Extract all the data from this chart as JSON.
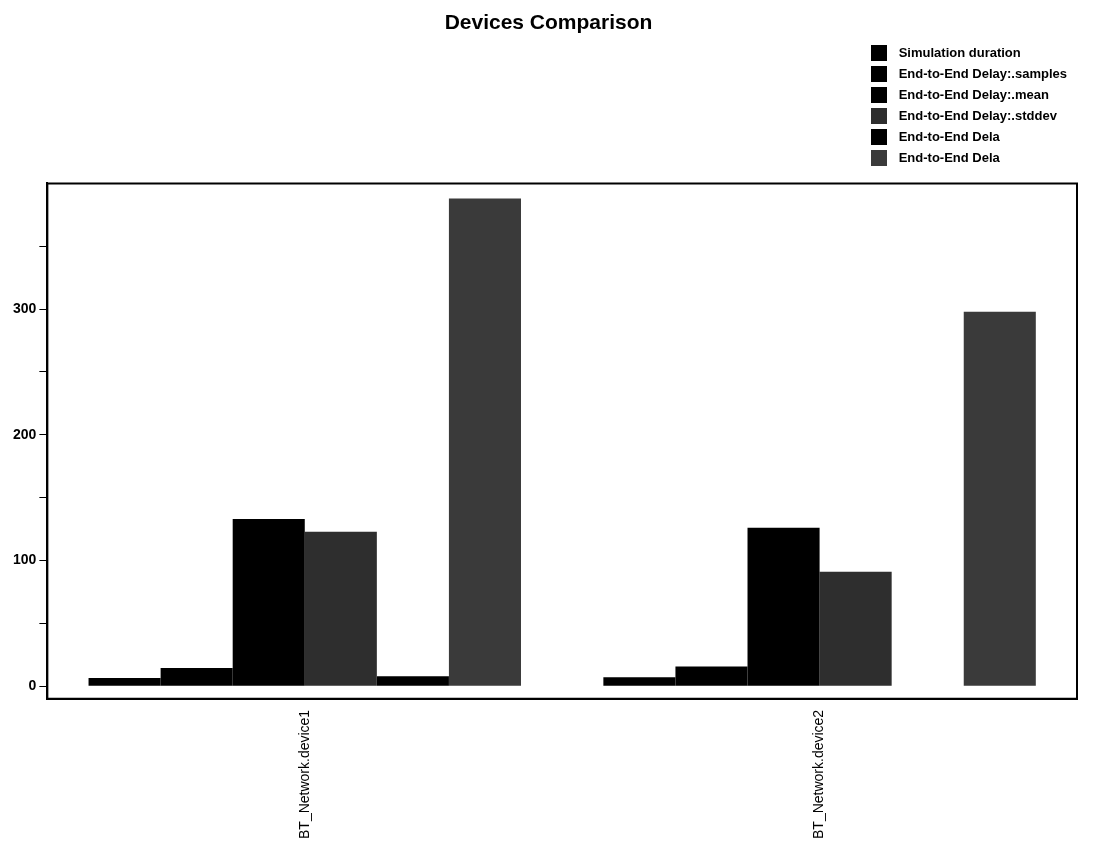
{
  "chart_data": {
    "type": "bar",
    "title": "Devices Comparison",
    "categories": [
      "BT_Network.device1",
      "BT_Network.device2"
    ],
    "series": [
      {
        "name": "Simulation duration",
        "color": "#000000",
        "values": [
          6.6,
          7.1
        ]
      },
      {
        "name": "End-to-End Delay:.samples",
        "color": "#000000",
        "values": [
          14.5,
          15.8
        ]
      },
      {
        "name": "End-to-End Delay:.mean",
        "color": "#000000",
        "values": [
          133,
          126
        ]
      },
      {
        "name": "End-to-End Delay:.stddev",
        "color": "#2e2e2e",
        "values": [
          123,
          91
        ]
      },
      {
        "name": "End-to-End Dela",
        "color": "#000000",
        "values": [
          7.9,
          0
        ]
      },
      {
        "name": "End-to-End Dela",
        "color": "#3a3a3a",
        "values": [
          388,
          298
        ]
      }
    ],
    "ylim": [
      -10,
      400
    ],
    "yticks": [
      0,
      {
        "value": 50,
        "label": null
      },
      100,
      {
        "value": 150,
        "label": null
      },
      200,
      {
        "value": 250,
        "label": null
      },
      300,
      {
        "value": 350,
        "label": null
      }
    ],
    "legend": "top right"
  }
}
